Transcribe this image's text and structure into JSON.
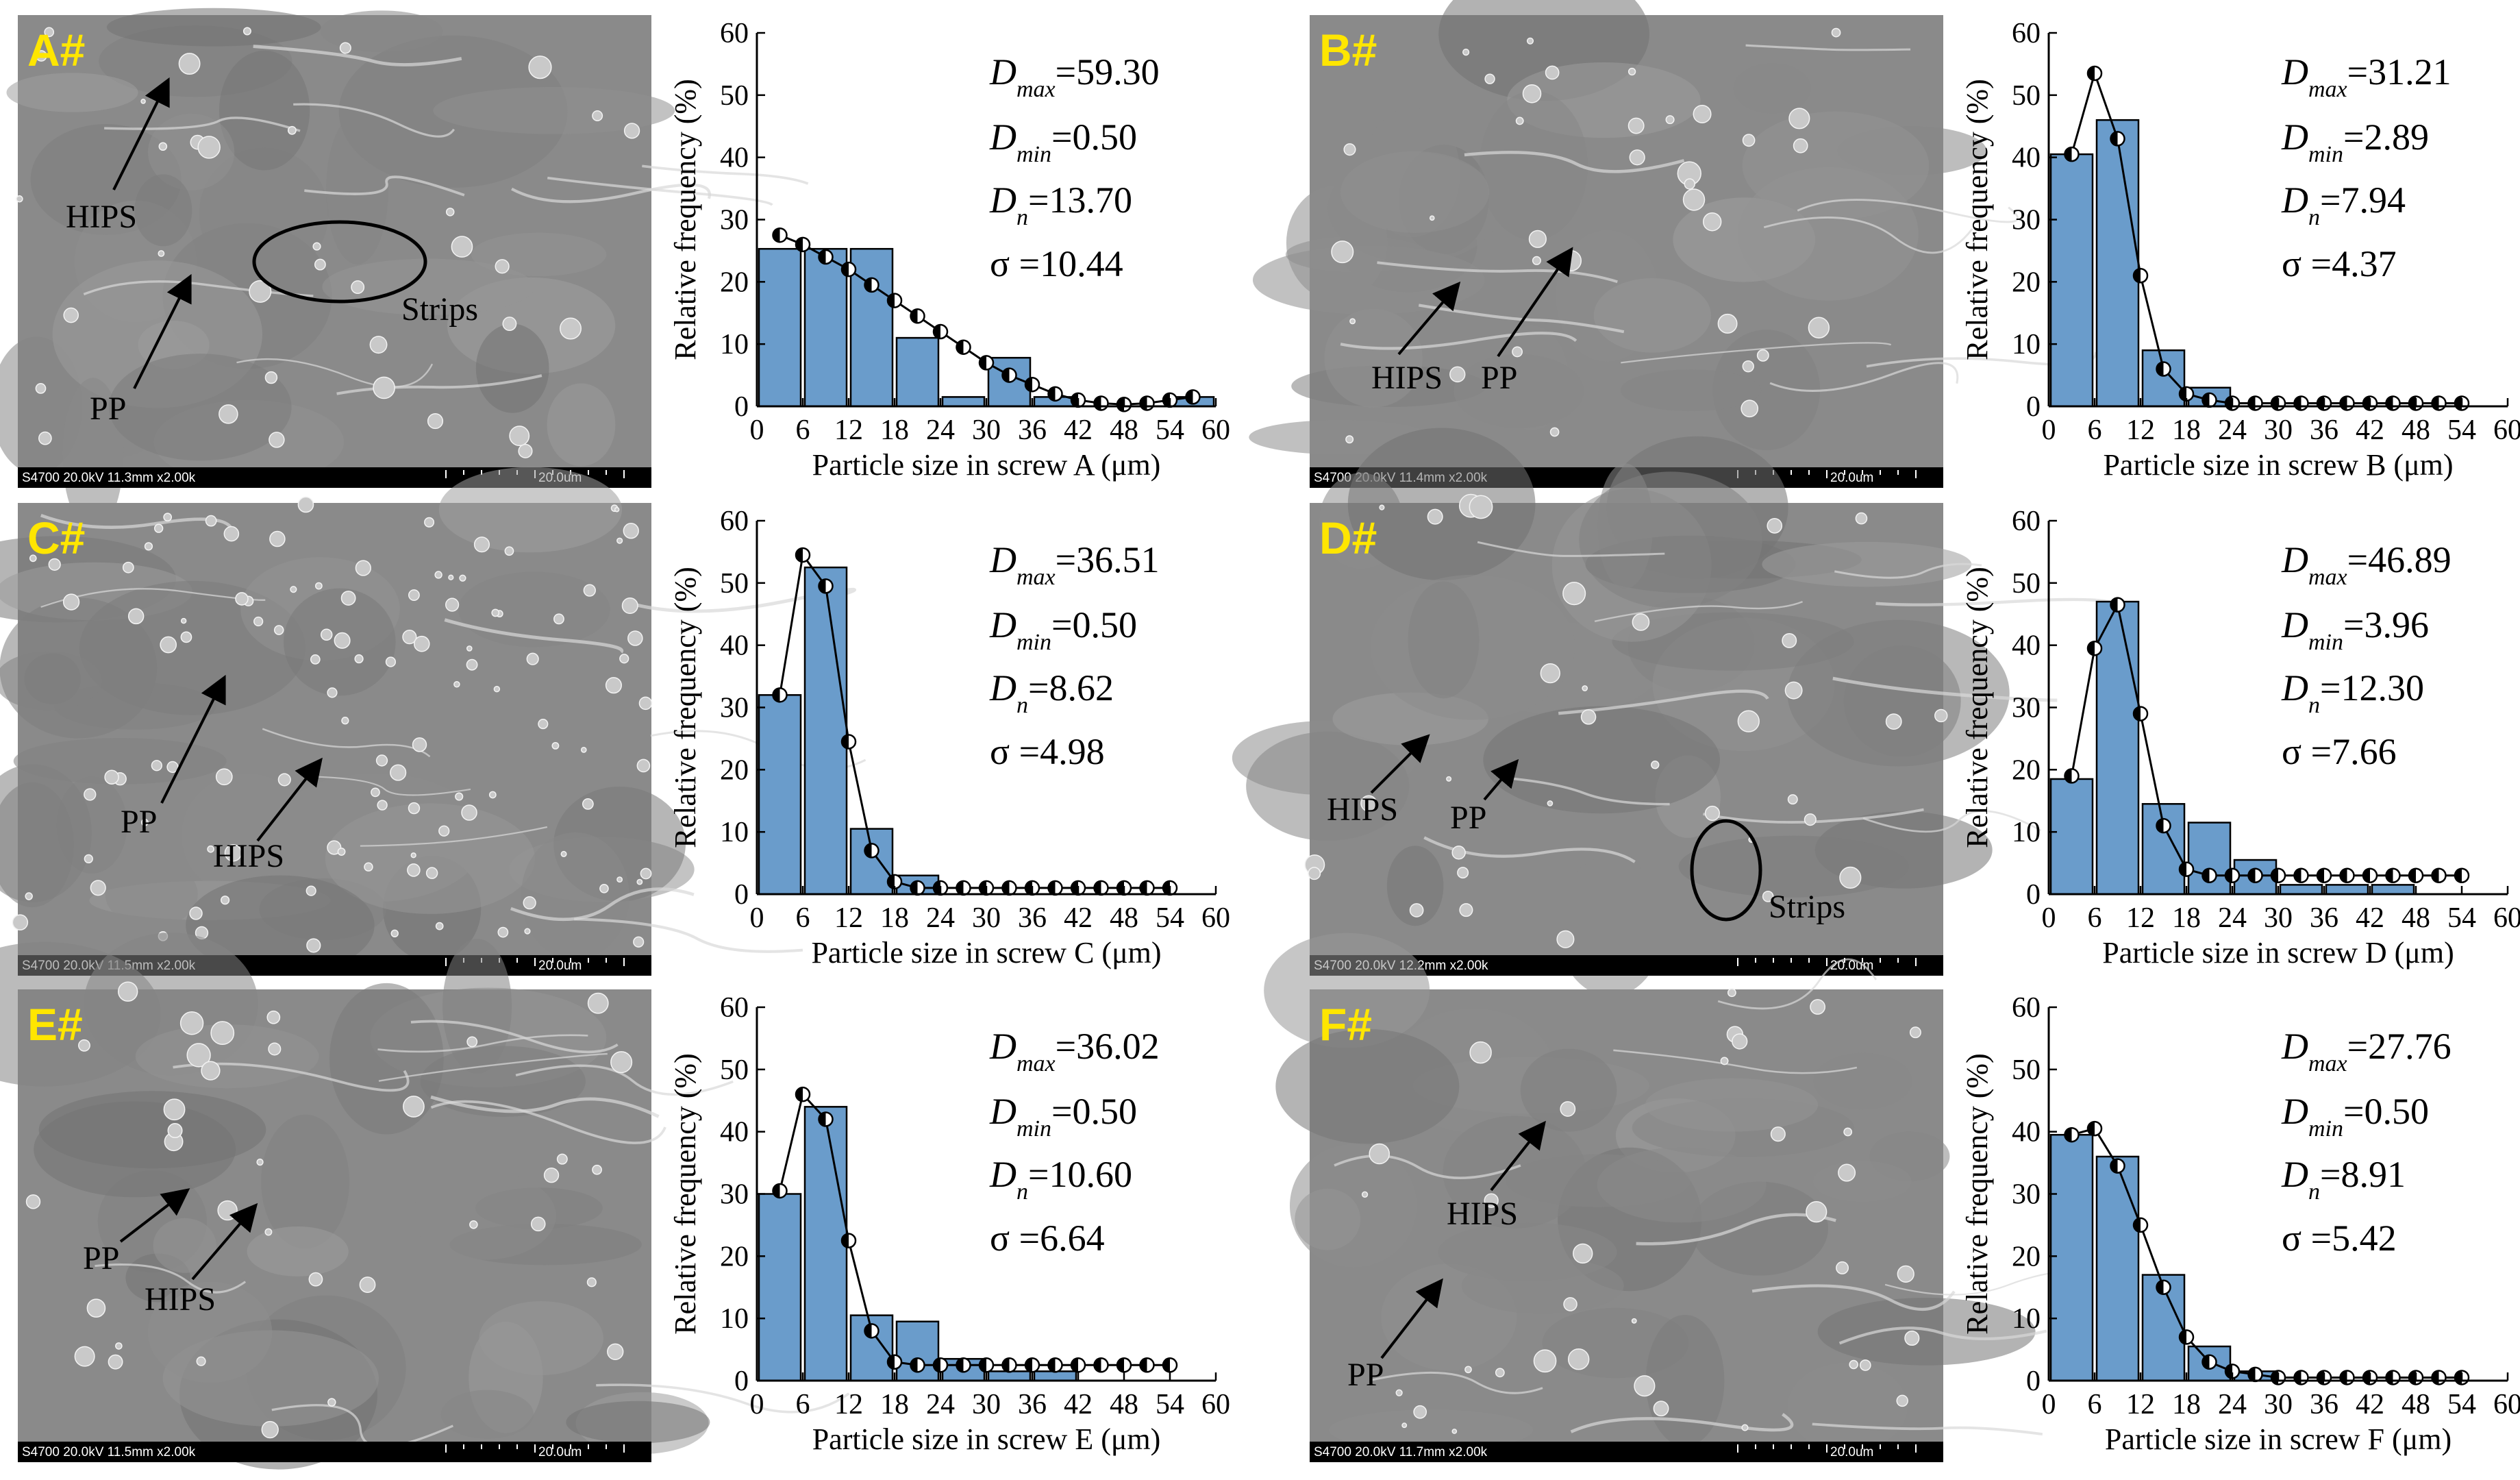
{
  "colors": {
    "bar_fill": "#6a9ccb",
    "bar_stroke": "#000000",
    "sem_background": "#8a8a8a",
    "sem_bar": "#000000",
    "panel_letter": "#ffe600",
    "arrow": "#000000"
  },
  "panels": [
    {
      "id": "A",
      "sem": {
        "letter": "A#",
        "footer": "S4700 20.0kV 11.3mm x2.00k",
        "scale": "20.0um",
        "labels": [
          "HIPS",
          "Strips",
          "PP"
        ]
      },
      "stats": {
        "dmax_sym": "D",
        "dmax_sub": "max",
        "dmax_val": "=59.30",
        "dmin_sym": "D",
        "dmin_sub": "min",
        "dmin_val": "=0.50",
        "dn_sym": "D",
        "dn_sub": "n",
        "dn_val": "=13.70",
        "sigma": "σ =10.44"
      }
    },
    {
      "id": "B",
      "sem": {
        "letter": "B#",
        "footer": "S4700 20.0kV 11.4mm x2.00k",
        "scale": "20.0um",
        "labels": [
          "HIPS",
          "PP"
        ]
      },
      "stats": {
        "dmax_sym": "D",
        "dmax_sub": "max",
        "dmax_val": "=31.21",
        "dmin_sym": "D",
        "dmin_sub": "min",
        "dmin_val": "=2.89",
        "dn_sym": "D",
        "dn_sub": "n",
        "dn_val": "=7.94",
        "sigma": "σ =4.37"
      }
    },
    {
      "id": "C",
      "sem": {
        "letter": "C#",
        "footer": "S4700 20.0kV 11.5mm x2.00k",
        "scale": "20.0um",
        "labels": [
          "PP",
          "HIPS"
        ]
      },
      "stats": {
        "dmax_sym": "D",
        "dmax_sub": "max",
        "dmax_val": "=36.51",
        "dmin_sym": "D",
        "dmin_sub": "min",
        "dmin_val": "=0.50",
        "dn_sym": "D",
        "dn_sub": "n",
        "dn_val": "=8.62",
        "sigma": "σ =4.98"
      }
    },
    {
      "id": "D",
      "sem": {
        "letter": "D#",
        "footer": "S4700 20.0kV 12.2mm x2.00k",
        "scale": "20.0um",
        "labels": [
          "HIPS",
          "PP",
          "Strips"
        ]
      },
      "stats": {
        "dmax_sym": "D",
        "dmax_sub": "max",
        "dmax_val": "=46.89",
        "dmin_sym": "D",
        "dmin_sub": "min",
        "dmin_val": "=3.96",
        "dn_sym": "D",
        "dn_sub": "n",
        "dn_val": "=12.30",
        "sigma": "σ =7.66"
      }
    },
    {
      "id": "E",
      "sem": {
        "letter": "E#",
        "footer": "S4700 20.0kV 11.5mm x2.00k",
        "scale": "20.0um",
        "labels": [
          "PP",
          "HIPS"
        ]
      },
      "stats": {
        "dmax_sym": "D",
        "dmax_sub": "max",
        "dmax_val": "=36.02",
        "dmin_sym": "D",
        "dmin_sub": "min",
        "dmin_val": "=0.50",
        "dn_sym": "D",
        "dn_sub": "n",
        "dn_val": "=10.60",
        "sigma": "σ =6.64"
      }
    },
    {
      "id": "F",
      "sem": {
        "letter": "F#",
        "footer": "S4700 20.0kV 11.7mm x2.00k",
        "scale": "20.0um",
        "labels": [
          "HIPS",
          "PP"
        ]
      },
      "stats": {
        "dmax_sym": "D",
        "dmax_sub": "max",
        "dmax_val": "=27.76",
        "dmin_sym": "D",
        "dmin_sub": "min",
        "dmin_val": "=0.50",
        "dn_sym": "D",
        "dn_sub": "n",
        "dn_val": "=8.91",
        "sigma": "σ =5.42"
      }
    }
  ],
  "chart_data": [
    {
      "type": "bar",
      "xlabel": "Particle size in screw A (μm)",
      "ylabel": "Relative frequency (%)",
      "xlim": [
        0,
        60
      ],
      "ylim": [
        0,
        60
      ],
      "xticks": [
        "0",
        "6",
        "12",
        "18",
        "24",
        "30",
        "36",
        "42",
        "48",
        "54",
        "60"
      ],
      "yticks": [
        "0",
        "10",
        "20",
        "30",
        "40",
        "50",
        "60"
      ],
      "bins": [
        3,
        9,
        15,
        21,
        27,
        33,
        39,
        45,
        51,
        57
      ],
      "values": [
        25.3,
        25.3,
        25.3,
        11.0,
        1.5,
        7.8,
        1.5,
        0.0,
        0.0,
        1.5
      ],
      "fit_x": [
        3,
        6,
        9,
        12,
        15,
        18,
        21,
        24,
        27,
        30,
        33,
        36,
        39,
        42,
        45,
        48,
        51,
        54,
        57
      ],
      "fit_y": [
        27.5,
        26.0,
        24.0,
        22.0,
        19.5,
        17.0,
        14.5,
        12.0,
        9.5,
        7.0,
        5.0,
        3.5,
        2.0,
        1.0,
        0.5,
        0.3,
        0.5,
        1.0,
        1.5
      ],
      "grid": false
    },
    {
      "type": "bar",
      "xlabel": "Particle size in screw B (μm)",
      "ylabel": "Relative frequency (%)",
      "xlim": [
        0,
        60
      ],
      "ylim": [
        0,
        60
      ],
      "xticks": [
        "0",
        "6",
        "12",
        "18",
        "24",
        "30",
        "36",
        "42",
        "48",
        "54",
        "60"
      ],
      "yticks": [
        "0",
        "10",
        "20",
        "30",
        "40",
        "50",
        "60"
      ],
      "bins": [
        3,
        9,
        15,
        21
      ],
      "values": [
        40.5,
        46.0,
        9.0,
        3.0
      ],
      "fit_x": [
        3,
        6,
        9,
        12,
        15,
        18,
        21,
        24,
        27,
        30,
        33,
        36,
        39,
        42,
        45,
        48,
        51,
        54
      ],
      "fit_y": [
        40.5,
        53.5,
        43.0,
        21.0,
        6.0,
        2.0,
        1.0,
        0.5,
        0.5,
        0.5,
        0.5,
        0.5,
        0.5,
        0.5,
        0.5,
        0.5,
        0.5,
        0.5
      ],
      "grid": false
    },
    {
      "type": "bar",
      "xlabel": "Particle size in screw C (μm)",
      "ylabel": "Relative frequency (%)",
      "xlim": [
        0,
        60
      ],
      "ylim": [
        0,
        60
      ],
      "xticks": [
        "0",
        "6",
        "12",
        "18",
        "24",
        "30",
        "36",
        "42",
        "48",
        "54",
        "60"
      ],
      "yticks": [
        "0",
        "10",
        "20",
        "30",
        "40",
        "50",
        "60"
      ],
      "bins": [
        3,
        9,
        15,
        21
      ],
      "values": [
        32.0,
        52.5,
        10.5,
        3.0
      ],
      "fit_x": [
        3,
        6,
        9,
        12,
        15,
        18,
        21,
        24,
        27,
        30,
        33,
        36,
        39,
        42,
        45,
        48,
        51,
        54
      ],
      "fit_y": [
        32.0,
        54.5,
        49.5,
        24.5,
        7.0,
        2.0,
        1.0,
        1.0,
        1.0,
        1.0,
        1.0,
        1.0,
        1.0,
        1.0,
        1.0,
        1.0,
        1.0,
        1.0
      ],
      "grid": false
    },
    {
      "type": "bar",
      "xlabel": "Particle size in screw D (μm)",
      "ylabel": "Relative frequency (%)",
      "xlim": [
        0,
        60
      ],
      "ylim": [
        0,
        60
      ],
      "xticks": [
        "0",
        "6",
        "12",
        "18",
        "24",
        "30",
        "36",
        "42",
        "48",
        "54",
        "60"
      ],
      "yticks": [
        "0",
        "10",
        "20",
        "30",
        "40",
        "50",
        "60"
      ],
      "bins": [
        3,
        9,
        15,
        21,
        27,
        33,
        39,
        45
      ],
      "values": [
        18.5,
        47.0,
        14.5,
        11.5,
        5.5,
        1.5,
        1.5,
        1.5
      ],
      "fit_x": [
        3,
        6,
        9,
        12,
        15,
        18,
        21,
        24,
        27,
        30,
        33,
        36,
        39,
        42,
        45,
        48,
        51,
        54
      ],
      "fit_y": [
        19.0,
        39.5,
        46.5,
        29.0,
        11.0,
        4.0,
        3.0,
        3.0,
        3.0,
        3.0,
        3.0,
        3.0,
        3.0,
        3.0,
        3.0,
        3.0,
        3.0,
        3.0
      ],
      "grid": false
    },
    {
      "type": "bar",
      "xlabel": "Particle size in screw E (μm)",
      "ylabel": "Relative frequency (%)",
      "xlim": [
        0,
        60
      ],
      "ylim": [
        0,
        60
      ],
      "xticks": [
        "0",
        "6",
        "12",
        "18",
        "24",
        "30",
        "36",
        "42",
        "48",
        "54",
        "60"
      ],
      "yticks": [
        "0",
        "10",
        "20",
        "30",
        "40",
        "50",
        "60"
      ],
      "bins": [
        3,
        9,
        15,
        21,
        27,
        33,
        39
      ],
      "values": [
        30.0,
        44.0,
        10.5,
        9.5,
        3.5,
        1.5,
        1.5
      ],
      "fit_x": [
        3,
        6,
        9,
        12,
        15,
        18,
        21,
        24,
        27,
        30,
        33,
        36,
        39,
        42,
        45,
        48,
        51,
        54
      ],
      "fit_y": [
        30.5,
        46.0,
        42.0,
        22.5,
        8.0,
        3.0,
        2.5,
        2.5,
        2.5,
        2.5,
        2.5,
        2.5,
        2.5,
        2.5,
        2.5,
        2.5,
        2.5,
        2.5
      ],
      "grid": false
    },
    {
      "type": "bar",
      "xlabel": "Particle size in screw F (μm)",
      "ylabel": "Relative frequency (%)",
      "xlim": [
        0,
        60
      ],
      "ylim": [
        0,
        60
      ],
      "xticks": [
        "0",
        "6",
        "12",
        "18",
        "24",
        "30",
        "36",
        "42",
        "48",
        "54",
        "60"
      ],
      "yticks": [
        "0",
        "10",
        "20",
        "30",
        "40",
        "50",
        "60"
      ],
      "bins": [
        3,
        9,
        15,
        21,
        27
      ],
      "values": [
        39.5,
        36.0,
        17.0,
        5.5,
        1.5
      ],
      "fit_x": [
        3,
        6,
        9,
        12,
        15,
        18,
        21,
        24,
        27,
        30,
        33,
        36,
        39,
        42,
        45,
        48,
        51,
        54
      ],
      "fit_y": [
        39.5,
        40.5,
        34.5,
        25.0,
        15.0,
        7.0,
        3.0,
        1.5,
        1.0,
        0.5,
        0.5,
        0.5,
        0.5,
        0.5,
        0.5,
        0.5,
        0.5,
        0.5
      ],
      "grid": false
    }
  ]
}
